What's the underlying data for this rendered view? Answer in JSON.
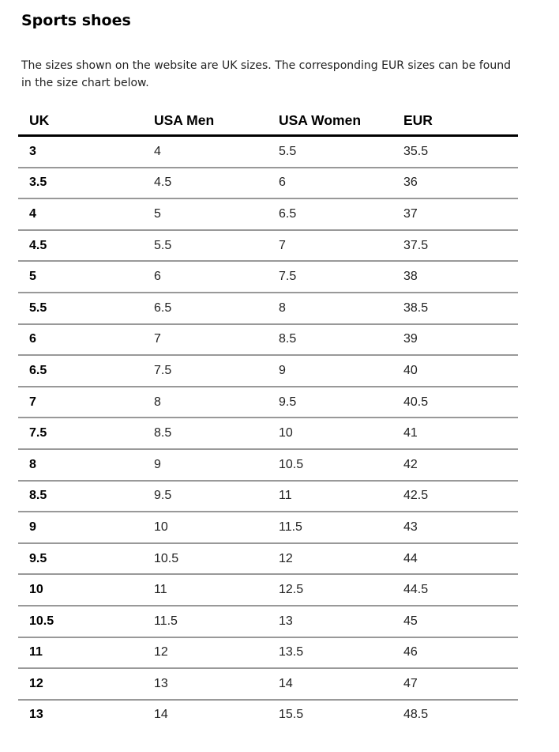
{
  "header": {
    "title": "Sports shoes",
    "intro": [
      "The sizes shown on the website are UK sizes. The corresponding EUR sizes can be found",
      "in the size chart below."
    ]
  },
  "table": {
    "columns": [
      "UK",
      "USA Men",
      "USA Women",
      "EUR"
    ],
    "rows": [
      [
        "3",
        "4",
        "5.5",
        "35.5"
      ],
      [
        "3.5",
        "4.5",
        "6",
        "36"
      ],
      [
        "4",
        "5",
        "6.5",
        "37"
      ],
      [
        "4.5",
        "5.5",
        "7",
        "37.5"
      ],
      [
        "5",
        "6",
        "7.5",
        "38"
      ],
      [
        "5.5",
        "6.5",
        "8",
        "38.5"
      ],
      [
        "6",
        "7",
        "8.5",
        "39"
      ],
      [
        "6.5",
        "7.5",
        "9",
        "40"
      ],
      [
        "7",
        "8",
        "9.5",
        "40.5"
      ],
      [
        "7.5",
        "8.5",
        "10",
        "41"
      ],
      [
        "8",
        "9",
        "10.5",
        "42"
      ],
      [
        "8.5",
        "9.5",
        "11",
        "42.5"
      ],
      [
        "9",
        "10",
        "11.5",
        "43"
      ],
      [
        "9.5",
        "10.5",
        "12",
        "44"
      ],
      [
        "10",
        "11",
        "12.5",
        "44.5"
      ],
      [
        "10.5",
        "11.5",
        "13",
        "45"
      ],
      [
        "11",
        "12",
        "13.5",
        "46"
      ],
      [
        "12",
        "13",
        "14",
        "47"
      ],
      [
        "13",
        "14",
        "15.5",
        "48.5"
      ]
    ]
  }
}
